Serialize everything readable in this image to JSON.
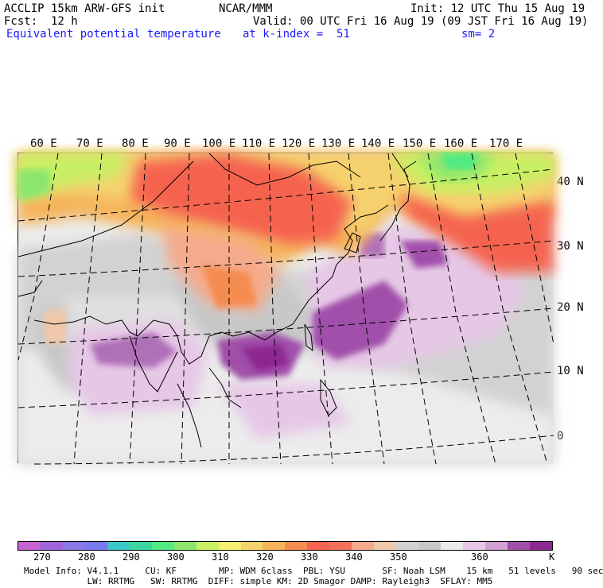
{
  "header": {
    "model": "ACCLIP 15km ARW-GFS init",
    "center": "NCAR/MMM",
    "init": "Init: 12 UTC Thu 15 Aug 19",
    "fcst_label": "Fcst:",
    "fcst_value": "12 h",
    "valid": "Valid: 00 UTC Fri 16 Aug 19 (09 JST Fri 16 Aug 19)",
    "field": "Equivalent potential temperature",
    "level": "at k-index =  51",
    "smooth": "sm= 2"
  },
  "map": {
    "lon_labels": [
      "60 E",
      "70 E",
      "80 E",
      "90 E",
      "100 E",
      "110 E",
      "120 E",
      "130 E",
      "140 E",
      "150 E",
      "160 E",
      "170 E"
    ],
    "lat_labels": [
      "40 N",
      "30 N",
      "20 N",
      "10 N",
      "0"
    ]
  },
  "colorbar": {
    "colors": [
      "#c864d2",
      "#a064dc",
      "#8c78e6",
      "#7878ef",
      "#3cc8c8",
      "#3cd7a0",
      "#50eb82",
      "#8ce66e",
      "#c8f064",
      "#f5f06e",
      "#f5d26e",
      "#f5b45a",
      "#f58c50",
      "#f56450",
      "#f56e5a",
      "#f5aa8c",
      "#f0c8aa",
      "#d2d2d2",
      "#c8c8c8",
      "#ececec",
      "#e6c8e6",
      "#d2a0d2",
      "#a050aa",
      "#8c2891"
    ],
    "ticks": [
      "270",
      "280",
      "290",
      "300",
      "310",
      "320",
      "330",
      "340",
      "350",
      "360"
    ],
    "unit": "K"
  },
  "info": {
    "line1": "Model Info: V4.1.1     CU: KF        MP: WDM 6class  PBL: YSU       SF: Noah LSM    15 km   51 levels   90 sec",
    "line2": "            LW: RRTMG   SW: RRTMG  DIFF: simple KM: 2D Smagor DAMP: Rayleigh3  SFLAY: MM5"
  }
}
